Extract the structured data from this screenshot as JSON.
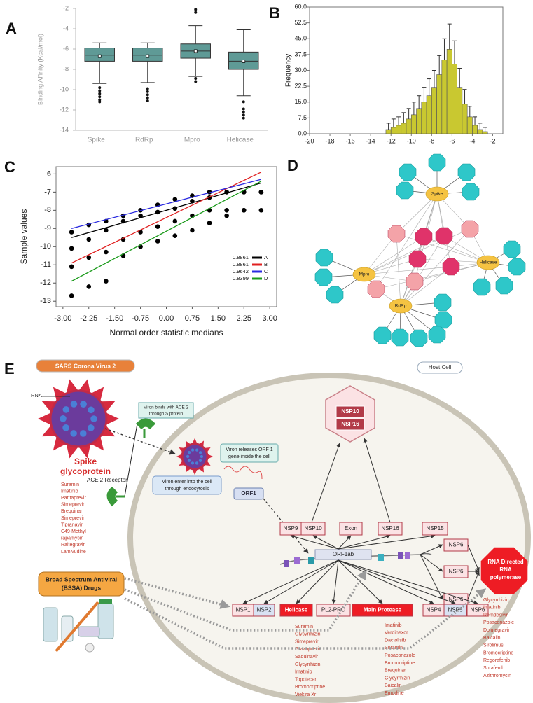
{
  "chart_data": [
    {
      "panel": "A",
      "type": "box",
      "ylabel": "Binding Affinity (Kcal/mol)",
      "color": "#5f9a96",
      "categories": [
        "Spike",
        "RdRp",
        "Mpro",
        "Helicase"
      ],
      "boxes": [
        {
          "low": -9.4,
          "q1": -7.2,
          "median": -6.6,
          "q3": -5.9,
          "high": -5.4,
          "mean": -6.7,
          "outliers": [
            -9.8,
            -10.1,
            -10.4,
            -10.7,
            -11.0,
            -11.2
          ]
        },
        {
          "low": -9.3,
          "q1": -7.2,
          "median": -6.6,
          "q3": -5.9,
          "high": -5.4,
          "mean": -6.7,
          "outliers": [
            -9.9,
            -10.2,
            -10.5,
            -10.8,
            -11.1
          ]
        },
        {
          "low": -8.7,
          "q1": -6.9,
          "median": -6.2,
          "q3": -5.5,
          "high": -3.7,
          "mean": -6.2,
          "outliers": [
            -2.1,
            -2.4,
            -8.9,
            -9.2
          ]
        },
        {
          "low": -10.6,
          "q1": -8.0,
          "median": -7.2,
          "q3": -6.3,
          "high": -4.1,
          "mean": -7.2,
          "outliers": [
            -11.2,
            -11.9,
            -12.2,
            -12.5,
            -12.8
          ]
        }
      ],
      "ylim": [
        -14,
        -2
      ],
      "yticks": [
        -14,
        -12,
        -10,
        -8,
        -6,
        -4,
        -2
      ]
    },
    {
      "panel": "B",
      "type": "histogram",
      "ylabel": "Frequency",
      "bins": [
        -12.5,
        -12,
        -11.5,
        -11,
        -10.5,
        -10,
        -9.5,
        -9,
        -8.5,
        -8,
        -7.5,
        -7,
        -6.5,
        -6,
        -5.5,
        -5,
        -4.5,
        -4,
        -3.5,
        -3,
        -2.5
      ],
      "series": [
        {
          "color": "#c9c830",
          "values": [
            2,
            3,
            4,
            5,
            7,
            9,
            12,
            15,
            18,
            22,
            28,
            35,
            40,
            33,
            22,
            14,
            8,
            4,
            2,
            1
          ],
          "errors": [
            3,
            4,
            4,
            5,
            5,
            6,
            6,
            7,
            8,
            8,
            9,
            10,
            12,
            11,
            9,
            7,
            5,
            4,
            3,
            2
          ]
        }
      ],
      "xlim": [
        -20,
        -1
      ],
      "xticks": [
        -20,
        -18,
        -16,
        -14,
        -12,
        -10,
        -8,
        -6,
        -4,
        -2
      ],
      "ylim": [
        0,
        60
      ],
      "yticks": [
        {
          "value": 0,
          "label": "0.0"
        },
        7.5,
        {
          "value": 15,
          "label": "15.0"
        },
        22.5,
        {
          "value": 30,
          "label": "30.0"
        },
        37.5,
        {
          "value": 45,
          "label": "45.0"
        },
        52.5,
        {
          "value": 60,
          "label": "60.0"
        }
      ]
    },
    {
      "panel": "C",
      "type": "scatter",
      "xlabel": "Normal order statistic medians",
      "ylabel": "Sample values",
      "marker_color": "#000000",
      "x": [
        -2.75,
        -2.25,
        -1.75,
        -1.25,
        -0.75,
        -0.25,
        0.25,
        0.75,
        1.25,
        1.75,
        2.25,
        2.75
      ],
      "fit_x": [
        -2.75,
        2.75
      ],
      "series": [
        {
          "name": "A",
          "r": 0.8861,
          "color": "#000000",
          "values": [
            -9.2,
            -8.8,
            -8.6,
            -8.3,
            -8.0,
            -7.7,
            -7.4,
            -7.2,
            -7.0,
            -7.0,
            -7.0,
            -7.0
          ],
          "fit": [
            -9.5,
            -6.5
          ]
        },
        {
          "name": "B",
          "r": 0.8861,
          "color": "#e02020",
          "values": [
            -10.1,
            -9.6,
            -9.1,
            -8.6,
            -8.3,
            -8.1,
            -7.9,
            -7.5,
            -7.3,
            -7.0,
            -7.0,
            -7.0
          ],
          "fit": [
            -10.9,
            -5.9
          ]
        },
        {
          "name": "C",
          "r": 0.9642,
          "color": "#2b2be0",
          "values": [
            -11.1,
            -10.6,
            -10.3,
            -9.6,
            -9.2,
            -8.9,
            -8.6,
            -8.3,
            -8.0,
            -8.0,
            -8.0,
            -7.0
          ],
          "fit": [
            -9.0,
            -6.3
          ]
        },
        {
          "name": "D",
          "r": 0.8399,
          "color": "#1a9a1a",
          "values": [
            -12.7,
            -12.2,
            -11.9,
            -10.5,
            -10.0,
            -9.7,
            -9.4,
            -9.1,
            -8.7,
            -8.3,
            -8.0,
            -8.0
          ],
          "fit": [
            -11.9,
            -6.4
          ]
        }
      ],
      "xlim": [
        -3.2,
        3.2
      ],
      "xticks": [
        {
          "value": -3,
          "label": "-3.00"
        },
        -2.25,
        {
          "value": -1.5,
          "label": "-1.50"
        },
        -0.75,
        {
          "value": 0,
          "label": "0.00"
        },
        0.75,
        {
          "value": 1.5,
          "label": "1.50"
        },
        2.25,
        {
          "value": 3,
          "label": "3.00"
        }
      ],
      "ylim": [
        -13.3,
        -5.6
      ],
      "yticks": [
        -13,
        -12,
        -11,
        -10,
        -9,
        -8,
        -7,
        -6
      ]
    }
  ],
  "network": {
    "panel": "D",
    "hubs": [
      "Spike",
      "Mpro",
      "Helicase",
      "RdRp"
    ]
  },
  "diagram": {
    "panel": "E",
    "virus_label": "SARS Corona Virus 2",
    "host_label": "Host Cell",
    "rna": "RNA",
    "spike_title": [
      "Spike",
      "glycoprotein"
    ],
    "spike_drugs": [
      "Suramin",
      "Imatinib",
      "Paritaprevir",
      "Simeprevir",
      "Brequinar",
      "Simeprevir",
      "Tipranavir",
      "C49-Methyl",
      "rapamycin",
      "Raltegravir",
      "Lamivudine"
    ],
    "ace2": "ACE 2 Receptor",
    "bind_note": [
      "Viron binds with ACE 2",
      "through S protein"
    ],
    "entry_note": [
      "Viron enter into the cell",
      "through endocytosis"
    ],
    "release_note": [
      "Viron releases ORF 1",
      "gene inside the cell"
    ],
    "orf1": "ORF1",
    "complex": [
      "NSP10",
      "NSP16"
    ],
    "top_row": [
      "NSP9",
      "NSP10",
      "Exon",
      "NSP16",
      "NSP15"
    ],
    "orf1ab": "ORF1ab",
    "right_column": [
      "NSP6",
      "NSP6",
      "NSP6"
    ],
    "rdrp": [
      "RNA Directed",
      "RNA",
      "polymerase"
    ],
    "bottom_row": [
      "NSP1",
      "NSP2",
      "Helicase",
      "PL2-PRO",
      "Main Protease",
      "NSP4",
      "NSP5",
      "NSP6"
    ],
    "helicase_drugs": [
      "Suramin",
      "Glycyrrhizin",
      "Simeprevir",
      "Grazoprevir",
      "Saquinavir",
      "Glycyrrhizin",
      "Imatinib",
      "Topotecan",
      "Bromocriptine",
      "Viekira Xr"
    ],
    "protease_drugs": [
      "Imatinib",
      "Verdinexor",
      "Dactolisib",
      "Suramin",
      "Posaconazole",
      "Bromocriptine",
      "Brequinar",
      "Glycyrrhizin",
      "Baicalin",
      "Emodine"
    ],
    "rdrp_drugs": [
      "Glycyrrhizin",
      "Imatinib",
      "Remdesivir",
      "Posaconazole",
      "Dolutegravir",
      "Baicalin",
      "Sirolimus",
      "Bromocriptine",
      "Regorafenib",
      "Sorafenib",
      "Azithromycin"
    ],
    "bssa": [
      "Broad Spectrum Antiviral",
      "(BSSA) Drugs"
    ]
  }
}
